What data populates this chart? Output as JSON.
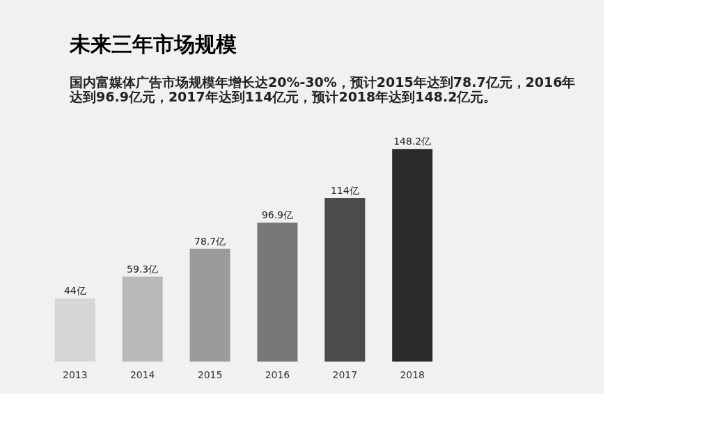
{
  "chart_data": {
    "type": "bar",
    "title": "未来三年市场规模",
    "subtitle": "国内富媒体广告市场规模年增长达20%-30%，预计2015年达到78.7亿元，2016年达到96.9亿元，2017年达到114亿元，预计2018年达到148.2亿元。",
    "categories": [
      "2013",
      "2014",
      "2015",
      "2016",
      "2017",
      "2018"
    ],
    "values": [
      44,
      59.3,
      78.7,
      96.9,
      114,
      148.2
    ],
    "colors": [
      "#d6d6d6",
      "#b9b9b9",
      "#9b9b9b",
      "#777777",
      "#4b4b4b",
      "#2b2b2b"
    ],
    "value_labels": [
      "44亿",
      "59.3亿",
      "78.7亿",
      "96.9亿",
      "114亿",
      "148.2亿"
    ],
    "grid": false,
    "legend": false
  }
}
